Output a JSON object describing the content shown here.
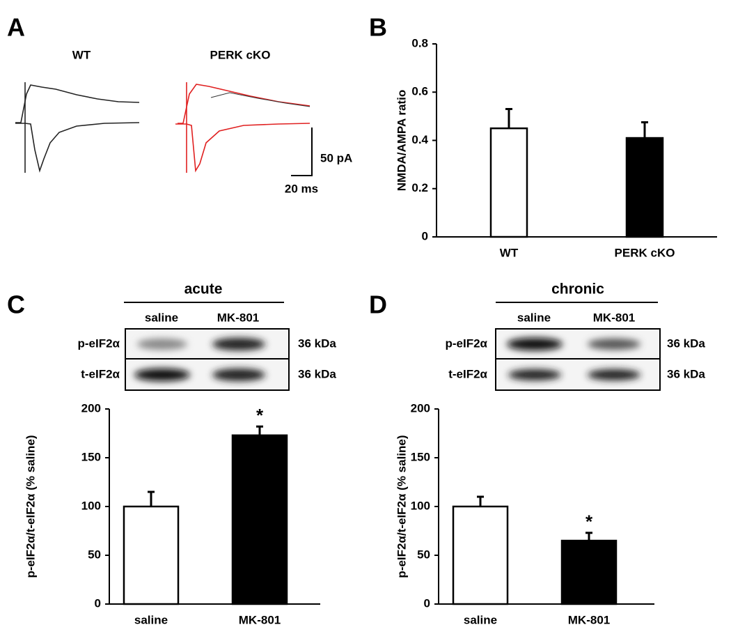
{
  "panel_labels": [
    "A",
    "B",
    "C",
    "D"
  ],
  "traces": {
    "labels": [
      "WT",
      "PERK cKO"
    ],
    "scale_y": "50 pA",
    "scale_x": "20 ms"
  },
  "blots": [
    {
      "title": "acute",
      "lanes": [
        "saline",
        "MK-801"
      ],
      "rows": [
        {
          "name": "p-eIF2α",
          "size": "36 kDa"
        },
        {
          "name": "t-eIF2α",
          "size": "36 kDa"
        }
      ]
    },
    {
      "title": "chronic",
      "lanes": [
        "saline",
        "MK-801"
      ],
      "rows": [
        {
          "name": "p-eIF2α",
          "size": "36 kDa"
        },
        {
          "name": "t-eIF2α",
          "size": "36 kDa"
        }
      ]
    }
  ],
  "chart_data": [
    {
      "type": "bar",
      "ylabel": "NMDA/AMPA ratio",
      "categories": [
        "WT",
        "PERK cKO"
      ],
      "values": [
        0.45,
        0.41
      ],
      "errors": [
        0.08,
        0.065
      ],
      "colors": [
        "#ffffff",
        "#000000"
      ],
      "ylim": [
        0,
        0.8
      ],
      "yticks": [
        0,
        0.2,
        0.4,
        0.6,
        0.8
      ]
    },
    {
      "type": "bar",
      "ylabel": "p-eIF2α/t-eIF2α (% saline)",
      "categories": [
        "saline",
        "MK-801"
      ],
      "values": [
        100,
        173
      ],
      "errors": [
        15,
        9
      ],
      "colors": [
        "#ffffff",
        "#000000"
      ],
      "ylim": [
        0,
        200
      ],
      "yticks": [
        0,
        50,
        100,
        150,
        200
      ],
      "significance": [
        null,
        "*"
      ]
    },
    {
      "type": "bar",
      "ylabel": "p-eIF2α/t-eIF2α (% saline)",
      "categories": [
        "saline",
        "MK-801"
      ],
      "values": [
        100,
        65
      ],
      "errors": [
        10,
        8
      ],
      "colors": [
        "#ffffff",
        "#000000"
      ],
      "ylim": [
        0,
        200
      ],
      "yticks": [
        0,
        50,
        100,
        150,
        200
      ],
      "significance": [
        null,
        "*"
      ]
    }
  ]
}
